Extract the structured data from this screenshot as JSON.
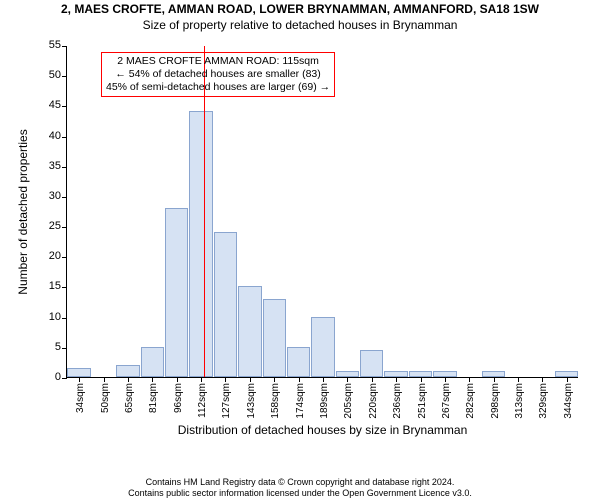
{
  "title_line1": "2, MAES CROFTE, AMMAN ROAD, LOWER BRYNAMMAN, AMMANFORD, SA18 1SW",
  "title_line2": "Size of property relative to detached houses in Brynamman",
  "chart": {
    "type": "histogram",
    "ylabel": "Number of detached properties",
    "xlabel": "Distribution of detached houses by size in Brynamman",
    "ylim": [
      0,
      55
    ],
    "yticks": [
      0,
      5,
      10,
      15,
      20,
      25,
      30,
      35,
      40,
      45,
      50,
      55
    ],
    "ytick_fontsize": 11,
    "xticks_labels": [
      "34sqm",
      "50sqm",
      "65sqm",
      "81sqm",
      "96sqm",
      "112sqm",
      "127sqm",
      "143sqm",
      "158sqm",
      "174sqm",
      "189sqm",
      "205sqm",
      "220sqm",
      "236sqm",
      "251sqm",
      "267sqm",
      "282sqm",
      "298sqm",
      "313sqm",
      "329sqm",
      "344sqm"
    ],
    "xtick_fontsize": 10,
    "bar_values": [
      1.5,
      0,
      2,
      5,
      28,
      44,
      24,
      15,
      13,
      5,
      10,
      1,
      4.5,
      1,
      1,
      1,
      0,
      1,
      0,
      0,
      1
    ],
    "bar_fill": "#d6e2f3",
    "bar_stroke": "#8aa5cf",
    "bar_stroke_width": 1,
    "background_color": "#ffffff",
    "axis_color": "#000000",
    "reference_line": {
      "index_position": 5.1,
      "color": "#ff0000",
      "width": 1
    },
    "annotation": {
      "border_color": "#ff0000",
      "lines": [
        "2 MAES CROFTE AMMAN ROAD: 115sqm",
        "← 54% of detached houses are smaller (83)",
        "45% of semi-detached houses are larger (69) →"
      ]
    },
    "label_fontsize": 12
  },
  "footer": {
    "line1": "Contains HM Land Registry data © Crown copyright and database right 2024.",
    "line2": "Contains public sector information licensed under the Open Government Licence v3.0."
  }
}
